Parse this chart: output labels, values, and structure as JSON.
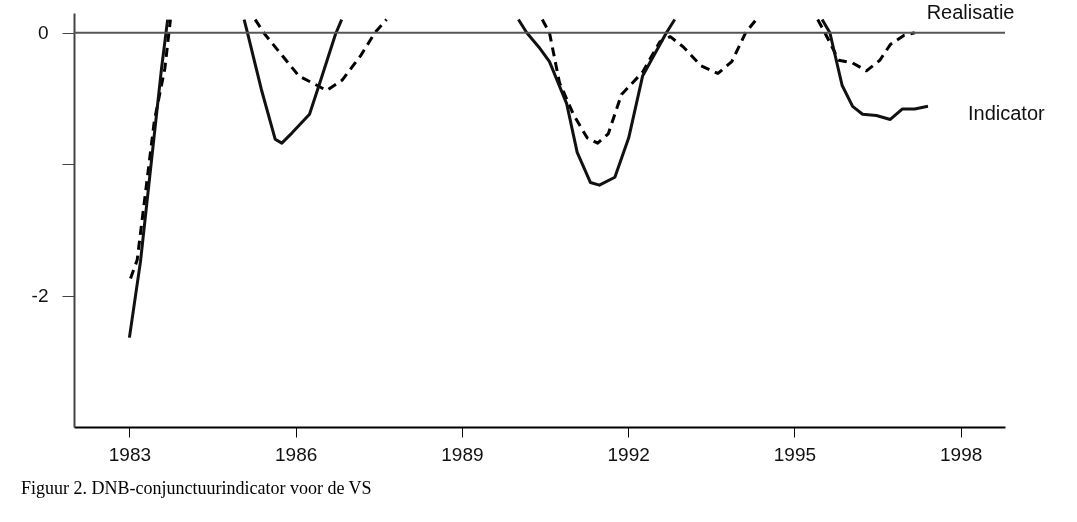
{
  "chart_data": {
    "type": "line",
    "xlim": [
      1982,
      1998.8
    ],
    "xticks": [
      1983,
      1986,
      1989,
      1992,
      1995,
      1998
    ],
    "ylim": [
      -3,
      0.15
    ],
    "yticks": [
      0,
      {
        "value": -1,
        "label": null
      },
      -2
    ],
    "grid": false,
    "legend": false,
    "series": [
      {
        "name": "Realisatie",
        "color": "#000000",
        "line_style": "dashed",
        "x": [
          1983.02,
          1983.14,
          1983.45,
          1983.64,
          1983.74,
          1984.5,
          1985.27,
          1985.44,
          1985.75,
          1986.06,
          1986.34,
          1986.56,
          1986.84,
          1987.18,
          1987.43,
          1987.64,
          1989,
          1990.45,
          1990.58,
          1990.76,
          1991.01,
          1991.26,
          1991.45,
          1991.64,
          1991.88,
          1992.26,
          1992.57,
          1992.76,
          1993.0,
          1993.31,
          1993.62,
          1993.87,
          1994.12,
          1994.31,
          1995,
          1995.42,
          1995.55,
          1995.8,
          1996.05,
          1996.3,
          1996.54,
          1996.73,
          1996.98,
          1997.17
        ],
        "values": [
          -1.87,
          -1.73,
          -0.67,
          -0.27,
          0.1,
          null,
          0.1,
          -0.01,
          -0.17,
          -0.33,
          -0.39,
          -0.44,
          -0.36,
          -0.17,
          0,
          0.1,
          null,
          0.1,
          0,
          -0.38,
          -0.62,
          -0.8,
          -0.84,
          -0.77,
          -0.47,
          -0.3,
          -0.07,
          -0.03,
          -0.11,
          -0.25,
          -0.31,
          -0.22,
          0,
          0.1,
          null,
          0.1,
          0,
          -0.21,
          -0.23,
          -0.29,
          -0.21,
          -0.09,
          -0.02,
          0
        ]
      },
      {
        "name": "Indicator",
        "color": "#111111",
        "line_style": "solid",
        "x": [
          1983.0,
          1983.2,
          1983.58,
          1983.69,
          1984.5,
          1985.07,
          1985.13,
          1985.38,
          1985.63,
          1985.75,
          1985.94,
          1986.25,
          1986.46,
          1986.72,
          1986.83,
          1988.5,
          1990.02,
          1990.17,
          1990.39,
          1990.58,
          1990.89,
          1991.08,
          1991.32,
          1991.48,
          1991.76,
          1992.01,
          1992.26,
          1992.69,
          1992.84,
          1994.5,
          1995.5,
          1995.64,
          1995.86,
          1996.05,
          1996.23,
          1996.48,
          1996.73,
          1996.95,
          1997.17,
          1997.41
        ],
        "values": [
          -2.32,
          -1.74,
          -0.27,
          0.1,
          null,
          0.1,
          0,
          -0.43,
          -0.81,
          -0.84,
          -0.76,
          -0.62,
          -0.35,
          -0.01,
          0.1,
          null,
          0.1,
          0,
          -0.11,
          -0.22,
          -0.54,
          -0.91,
          -1.14,
          -1.16,
          -1.1,
          -0.8,
          -0.33,
          0,
          0.1,
          null,
          0.1,
          0,
          -0.4,
          -0.56,
          -0.62,
          -0.63,
          -0.66,
          -0.58,
          -0.58,
          -0.56
        ]
      }
    ],
    "ref_lines": [
      {
        "axis": "y",
        "value": 0,
        "color": "#555555"
      }
    ],
    "annotations": [
      "Figuur 2. DNB-conjunctuurindicator voor de VS"
    ]
  }
}
